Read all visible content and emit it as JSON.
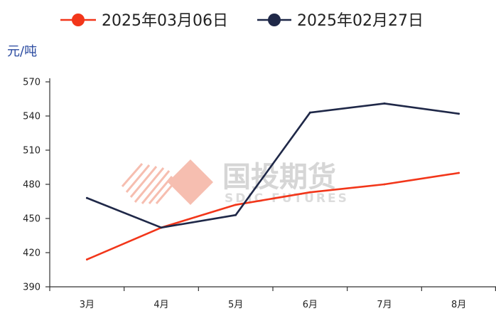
{
  "chart_data": {
    "type": "line",
    "title": "",
    "xlabel": "",
    "ylabel": "元/吨",
    "categories": [
      "3月",
      "4月",
      "5月",
      "6月",
      "7月",
      "8月"
    ],
    "ylim": [
      390,
      570
    ],
    "yticks": [
      390,
      420,
      450,
      480,
      510,
      540,
      570
    ],
    "grid": false,
    "legend_position": "top",
    "series": [
      {
        "name": "2025年03月06日",
        "color": "#f2361a",
        "values": [
          414,
          442,
          462,
          473,
          480,
          490
        ]
      },
      {
        "name": "2025年02月27日",
        "color": "#1f2848",
        "values": [
          468,
          442,
          453,
          543,
          551,
          542
        ]
      }
    ]
  },
  "watermark": {
    "name": "国投期货",
    "sub": "SDIC FUTURES",
    "color": "#f5b3a3"
  }
}
